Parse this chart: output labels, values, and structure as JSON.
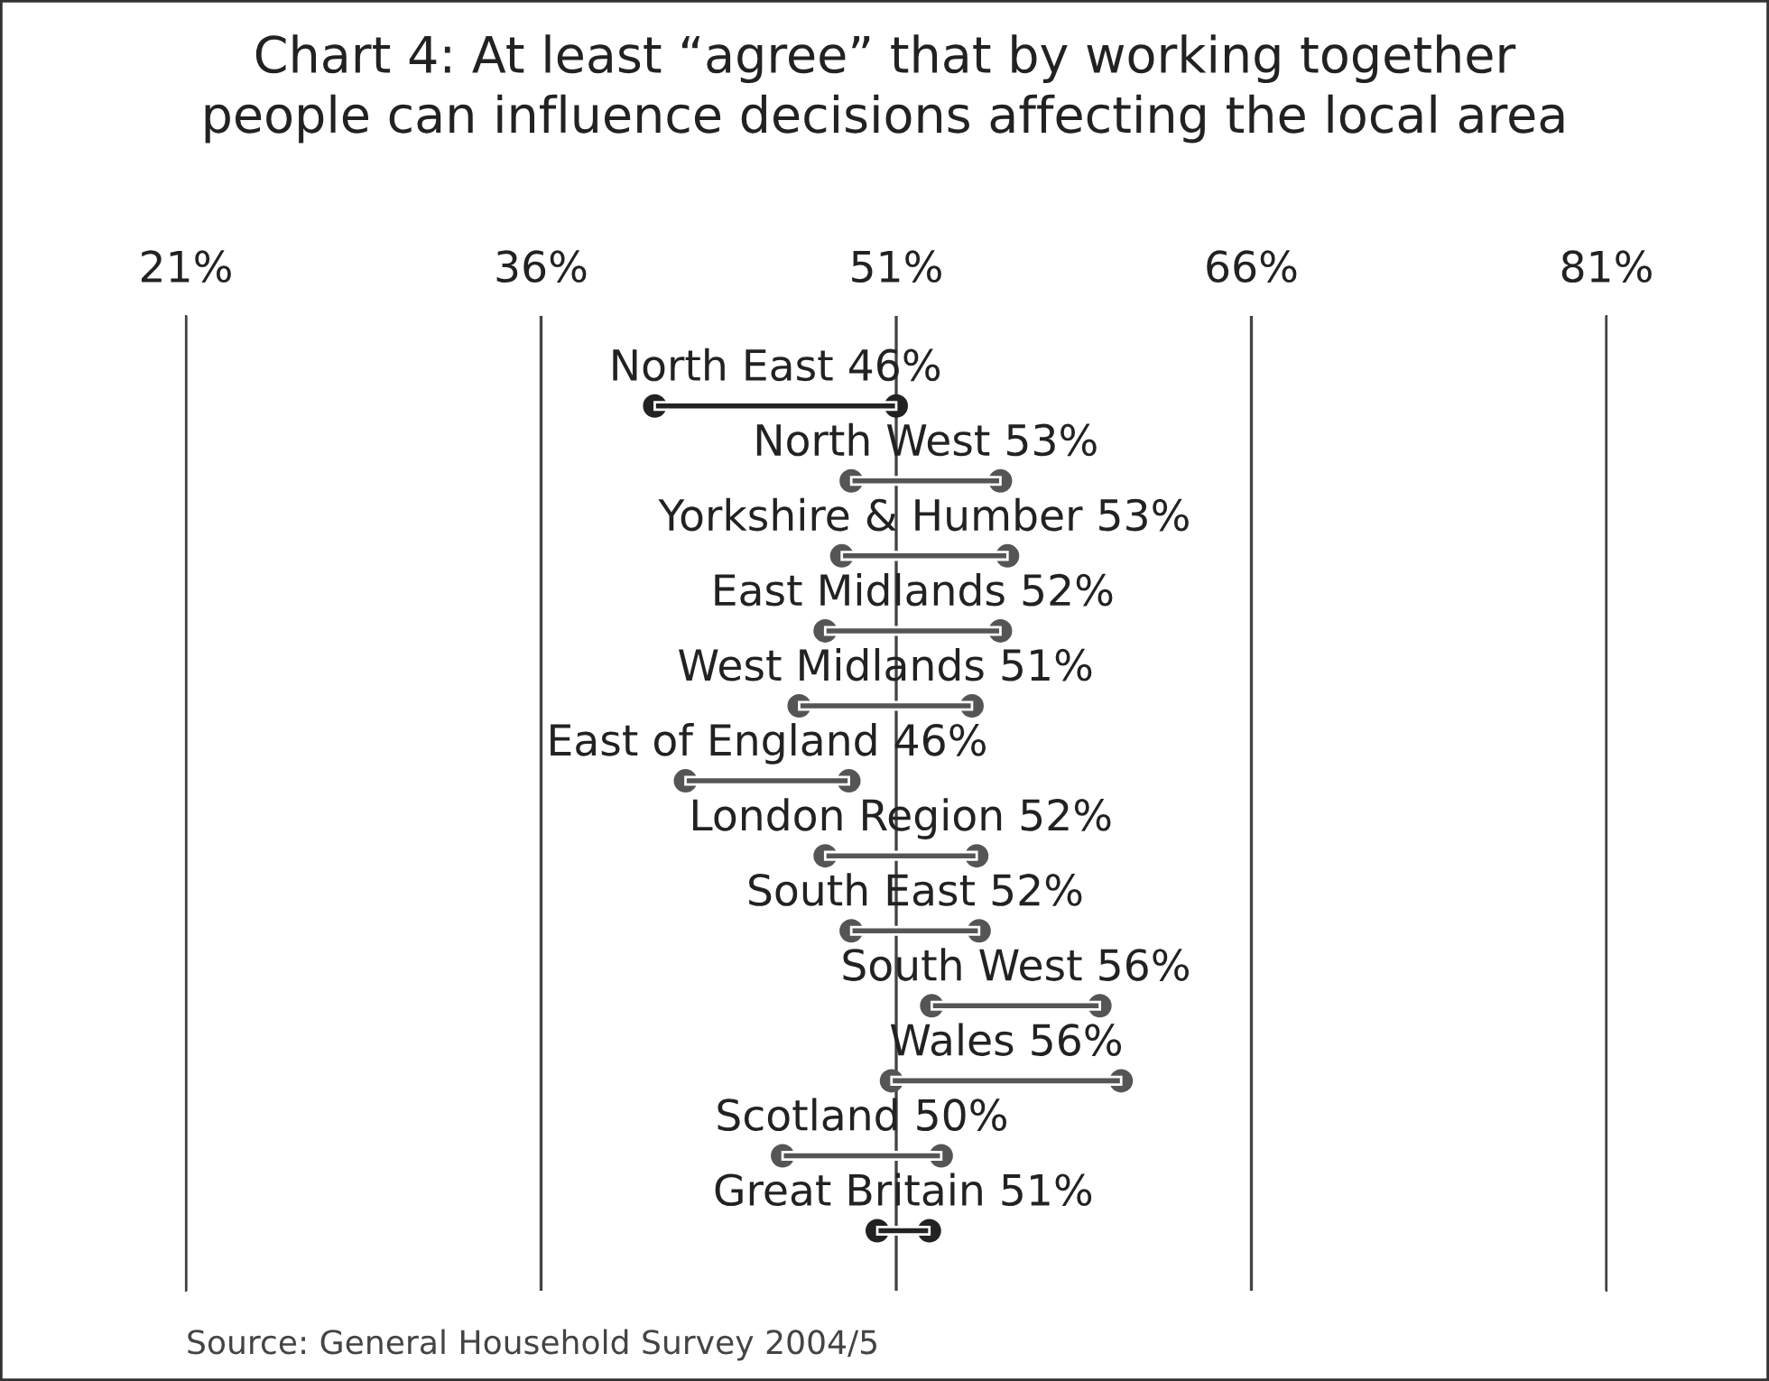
{
  "chart_data": {
    "type": "bar",
    "orientation": "horizontal",
    "title": "Chart 4: At least “agree” that by working together\npeople can influence decisions affecting the local area",
    "categories": [
      "North East 46%",
      "North West 53%",
      "Yorkshire & Humber 53%",
      "East Midlands 52%",
      "West Midlands 51%",
      "East of England 46%",
      "London Region 52%",
      "South East 52%",
      "South West 56%",
      "Wales 56%",
      "Scotland 50%",
      "Great Britain 51%"
    ],
    "base": [
      40.8,
      49.1,
      48.7,
      48.0,
      46.9,
      42.1,
      48.0,
      49.1,
      52.5,
      50.8,
      46.2,
      50.2
    ],
    "values": [
      10.2,
      6.3,
      7.0,
      7.4,
      7.3,
      6.9,
      6.4,
      5.4,
      7.1,
      9.7,
      6.7,
      2.2
    ],
    "colors": [
      "#222222",
      "#555555",
      "#555555",
      "#555555",
      "#555555",
      "#555555",
      "#555555",
      "#555555",
      "#555555",
      "#555555",
      "#555555",
      "#222222"
    ],
    "marker": "circle",
    "xlim": [
      21,
      81
    ],
    "xticks": [
      {
        "value": 21,
        "label": "21%"
      },
      {
        "value": 36,
        "label": "36%"
      },
      {
        "value": 51,
        "label": "51%"
      },
      {
        "value": 66,
        "label": "66%"
      },
      {
        "value": 81,
        "label": "81%"
      }
    ],
    "grid": "x",
    "annotations": [
      "Source: General Household Survey 2004/5"
    ]
  }
}
